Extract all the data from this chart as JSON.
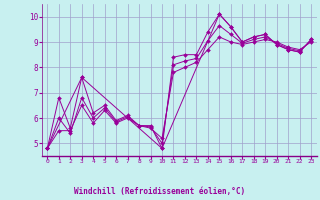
{
  "xlabel": "Windchill (Refroidissement éolien,°C)",
  "bg_color": "#c8f0f0",
  "line_color": "#990099",
  "grid_color": "#a0a0cc",
  "axis_line_color": "#880088",
  "xlim": [
    -0.5,
    23.5
  ],
  "ylim": [
    4.5,
    10.5
  ],
  "xticks": [
    0,
    1,
    2,
    3,
    4,
    5,
    6,
    7,
    8,
    9,
    10,
    11,
    12,
    13,
    14,
    15,
    16,
    17,
    18,
    19,
    20,
    21,
    22,
    23
  ],
  "yticks": [
    5,
    6,
    7,
    8,
    9,
    10
  ],
  "series1_x": [
    0,
    1,
    2,
    3,
    4,
    5,
    6,
    7,
    8,
    9,
    10,
    11,
    12,
    13,
    14,
    15,
    16,
    17,
    18,
    19,
    20,
    21,
    22,
    23
  ],
  "series1_y": [
    4.8,
    6.8,
    5.6,
    7.6,
    6.2,
    6.5,
    5.9,
    6.1,
    5.7,
    5.7,
    4.8,
    8.4,
    8.5,
    8.5,
    9.4,
    10.1,
    9.6,
    9.0,
    9.2,
    9.3,
    8.9,
    8.7,
    8.6,
    9.1
  ],
  "series2_x": [
    0,
    1,
    2,
    3,
    4,
    5,
    6,
    7,
    8,
    9,
    10,
    11,
    12,
    13,
    14,
    15,
    16,
    17,
    18,
    19,
    20,
    21,
    22,
    23
  ],
  "series2_y": [
    4.8,
    5.5,
    5.5,
    6.5,
    5.8,
    6.3,
    5.8,
    6.0,
    5.7,
    5.6,
    5.2,
    7.8,
    8.0,
    8.2,
    8.7,
    9.2,
    9.0,
    8.9,
    9.0,
    9.1,
    9.0,
    8.8,
    8.7,
    9.0
  ],
  "series3_x": [
    0,
    3,
    10,
    15,
    16,
    17,
    18,
    19,
    20,
    21,
    22,
    23
  ],
  "series3_y": [
    4.8,
    7.6,
    4.8,
    10.1,
    9.6,
    9.0,
    9.2,
    9.3,
    8.9,
    8.7,
    8.6,
    9.1
  ],
  "series4_x": [
    0,
    1,
    2,
    3,
    4,
    5,
    6,
    7,
    8,
    9,
    10,
    11,
    12,
    13,
    14,
    15,
    16,
    17,
    18,
    19,
    20,
    21,
    22,
    23
  ],
  "series4_y": [
    4.8,
    6.0,
    5.4,
    6.8,
    6.0,
    6.4,
    5.85,
    6.05,
    5.7,
    5.65,
    5.0,
    8.1,
    8.25,
    8.35,
    9.05,
    9.65,
    9.3,
    8.95,
    9.1,
    9.2,
    8.95,
    8.75,
    8.65,
    9.05
  ]
}
